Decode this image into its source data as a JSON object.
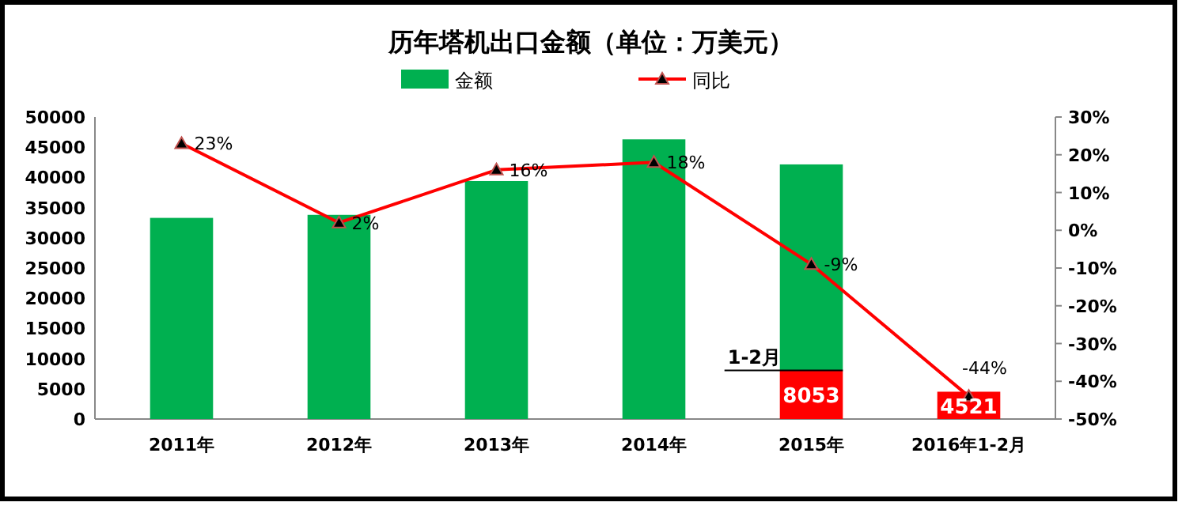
{
  "chart_data": {
    "type": "bar",
    "title": "历年塔机出口金额（单位：万美元）",
    "categories": [
      "2011年",
      "2012年",
      "2013年",
      "2014年",
      "2015年",
      "2016年1-2月"
    ],
    "stacked": true,
    "series": [
      {
        "color": "#ff0000",
        "values": [
          null,
          null,
          null,
          null,
          8053,
          4521
        ],
        "value_labels": [
          null,
          null,
          null,
          null,
          "8053",
          "4521"
        ]
      },
      {
        "name": "金额",
        "color": "#00b050",
        "values": [
          33300,
          33800,
          39400,
          46300,
          34100,
          null
        ]
      },
      {
        "name": "同比",
        "type": "line",
        "axis": "y2",
        "color": "#ff0000",
        "marker": "triangle",
        "values": [
          23,
          2,
          16,
          18,
          -9,
          -44
        ],
        "value_labels": [
          "23%",
          "2%",
          "16%",
          "18%",
          "-9%",
          "-44%"
        ]
      }
    ],
    "ylim": [
      0,
      50000
    ],
    "yticks": [
      0,
      5000,
      10000,
      15000,
      20000,
      25000,
      30000,
      35000,
      40000,
      45000,
      50000
    ],
    "y2lim": [
      -50,
      30
    ],
    "y2ticks": [
      {
        "value": -50,
        "label": "-50%"
      },
      {
        "value": -40,
        "label": "-40%"
      },
      {
        "value": -30,
        "label": "-30%"
      },
      {
        "value": -20,
        "label": "-20%"
      },
      {
        "value": -10,
        "label": "-10%"
      },
      {
        "value": 0,
        "label": "0%"
      },
      {
        "value": 10,
        "label": "10%"
      },
      {
        "value": 20,
        "label": "20%"
      },
      {
        "value": 30,
        "label": "30%"
      }
    ],
    "annotations": [
      {
        "text": "1-2月",
        "x": "2015年",
        "y": 8053
      }
    ],
    "legend": "top",
    "grid": false
  }
}
